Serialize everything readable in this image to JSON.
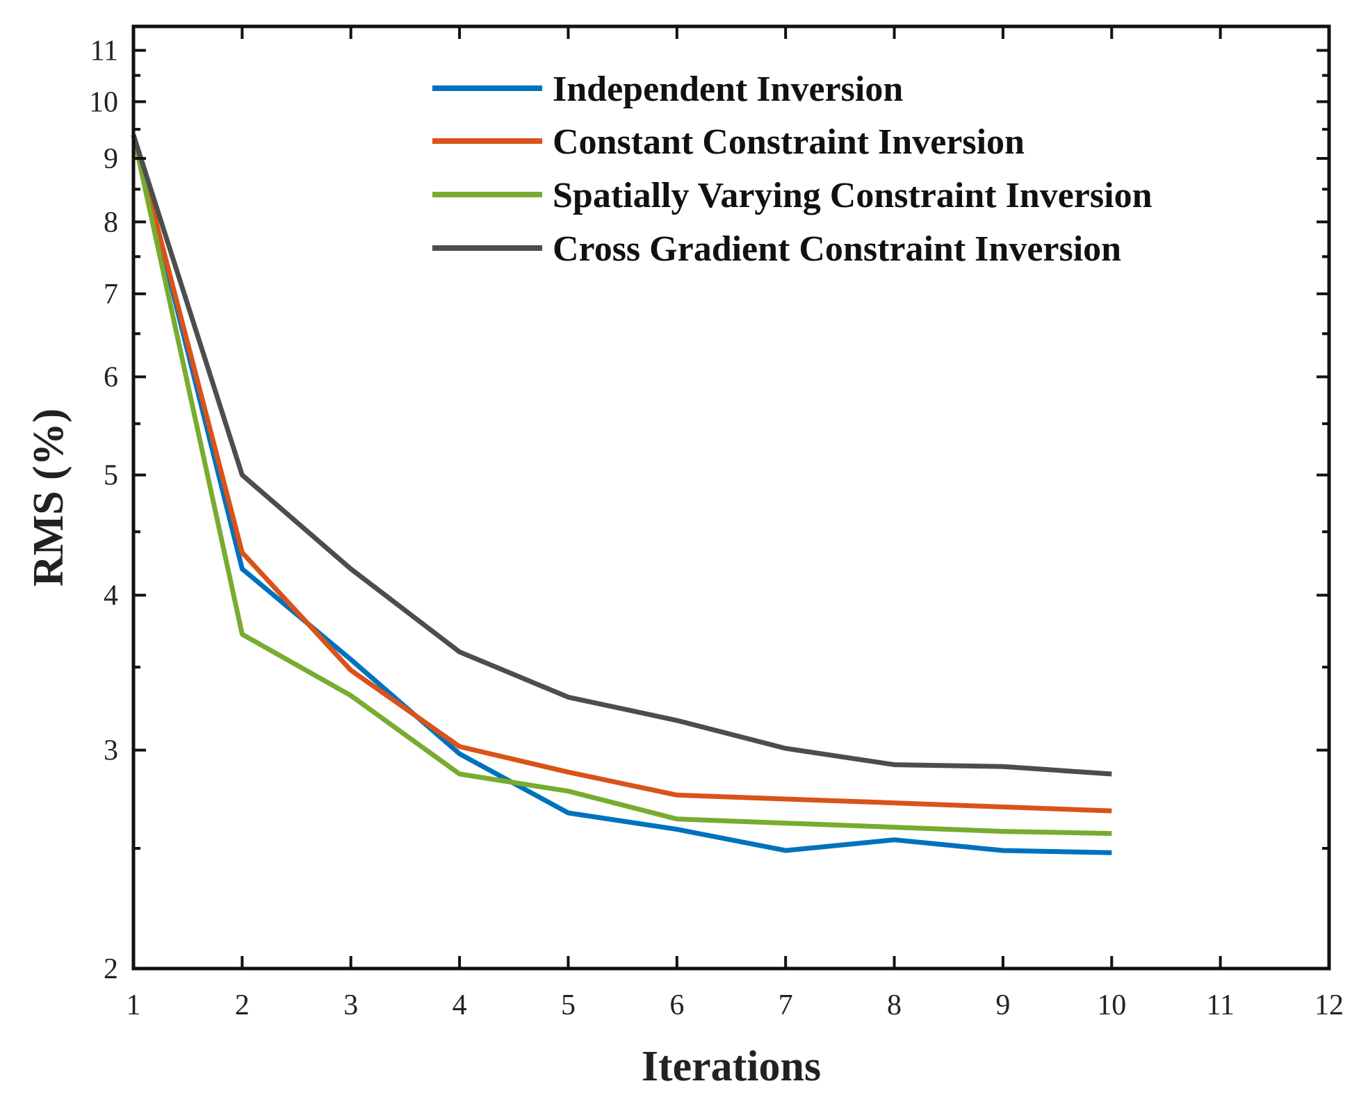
{
  "chart_data": {
    "type": "line",
    "title": "",
    "xlabel": "Iterations",
    "ylabel": "RMS (%)",
    "xlim": [
      1,
      12
    ],
    "ylim": [
      2,
      11.5
    ],
    "yscale": "log",
    "xticks": [
      "1",
      "2",
      "3",
      "4",
      "5",
      "6",
      "7",
      "8",
      "9",
      "10",
      "11",
      "12"
    ],
    "yticks": [
      "2",
      "3",
      "4",
      "5",
      "6",
      "7",
      "8",
      "9",
      "10",
      "11"
    ],
    "grid": false,
    "legend_position": "top-right",
    "x": [
      1,
      2,
      3,
      4,
      5,
      6,
      7,
      8,
      9,
      10
    ],
    "series": [
      {
        "name": "Independent Inversion",
        "color": "#0072BD",
        "values": [
          9.4,
          4.2,
          3.55,
          2.98,
          2.67,
          2.59,
          2.49,
          2.54,
          2.49,
          2.48
        ]
      },
      {
        "name": "Constant Constraint Inversion",
        "color": "#D95319",
        "values": [
          9.4,
          4.33,
          3.48,
          3.02,
          2.88,
          2.76,
          2.74,
          2.72,
          2.7,
          2.68
        ]
      },
      {
        "name": "Spatially Varying Constraint Inversion",
        "color": "#77AC30",
        "values": [
          9.4,
          3.72,
          3.32,
          2.87,
          2.78,
          2.64,
          2.62,
          2.6,
          2.58,
          2.57
        ]
      },
      {
        "name": "Cross Gradient Constraint Inversion",
        "color": "#4D4D4D",
        "values": [
          9.4,
          5.0,
          4.2,
          3.6,
          3.31,
          3.17,
          3.01,
          2.92,
          2.91,
          2.87
        ]
      }
    ]
  }
}
